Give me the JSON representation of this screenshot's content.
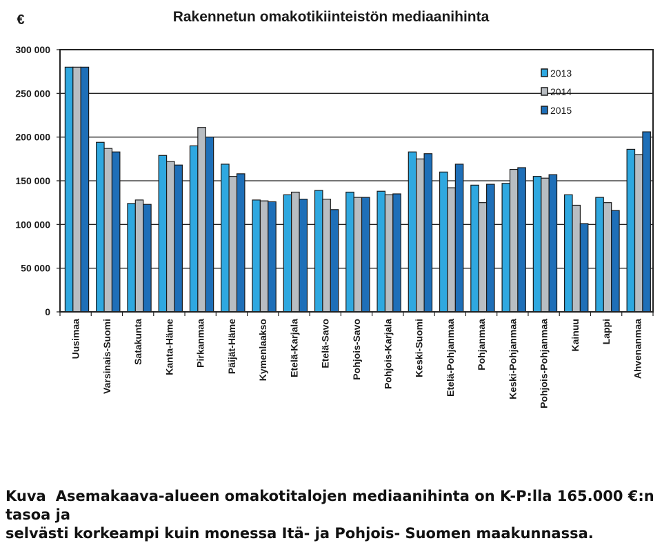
{
  "chart_data": {
    "type": "bar",
    "title": "Rakennetun omakotikiinteistön mediaanihinta",
    "ylabel": "€",
    "ylim": [
      0,
      300000
    ],
    "yticks": [
      "0",
      "50 000",
      "100 000",
      "150 000",
      "200 000",
      "250 000",
      "300 000"
    ],
    "ytick_values": [
      0,
      50000,
      100000,
      150000,
      200000,
      250000,
      300000
    ],
    "grid": true,
    "legend": "top-right",
    "categories": [
      "Uusimaa",
      "Varsinais-Suomi",
      "Satakunta",
      "Kanta-Häme",
      "Pirkanmaa",
      "Päijät-Häme",
      "Kymenlaakso",
      "Etelä-Karjala",
      "Etelä-Savo",
      "Pohjois-Savo",
      "Pohjois-Karjala",
      "Keski-Suomi",
      "Etelä-Pohjanmaa",
      "Pohjanmaa",
      "Keski-Pohjanmaa",
      "Pohjois-Pohjanmaa",
      "Kainuu",
      "Lappi",
      "Ahvenanmaa"
    ],
    "series": [
      {
        "name": "2013",
        "color": "#2fa8e0",
        "values": [
          280000,
          194000,
          124000,
          179000,
          190000,
          169000,
          128000,
          134000,
          139000,
          137000,
          138000,
          183000,
          160000,
          145000,
          147000,
          155000,
          134000,
          131000,
          186000
        ]
      },
      {
        "name": "2014",
        "color": "#b8bdc2",
        "values": [
          280000,
          187000,
          128000,
          172000,
          211000,
          155000,
          127000,
          137000,
          129000,
          131000,
          134000,
          175000,
          142000,
          125000,
          163000,
          153000,
          122000,
          125000,
          180000
        ]
      },
      {
        "name": "2015",
        "color": "#1e6fb8",
        "values": [
          280000,
          183000,
          123000,
          168000,
          200000,
          158000,
          126000,
          129000,
          117000,
          131000,
          135000,
          181000,
          169000,
          146000,
          165000,
          157000,
          101000,
          116000,
          206000
        ]
      }
    ]
  },
  "caption": {
    "label": "Kuva",
    "line1": "Asemakaava-alueen omakotitalojen mediaanihinta on K-P:lla 165.000 €:n tasoa ja",
    "line2": "selvästi korkeampi kuin monessa Itä- ja Pohjois- Suomen maakunnassa."
  }
}
